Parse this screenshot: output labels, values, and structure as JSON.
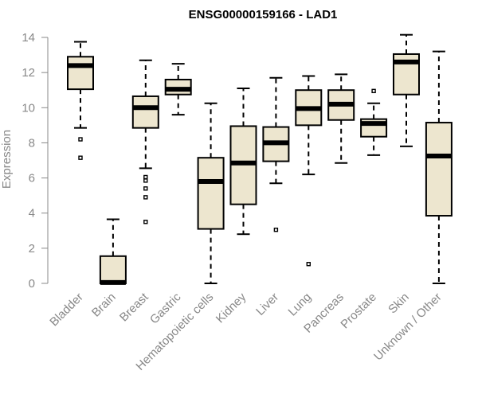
{
  "chart_data": {
    "type": "box",
    "title": "ENSG00000159166 - LAD1",
    "xlabel": "",
    "ylabel": "Expression",
    "ylim": [
      0,
      14
    ],
    "yticks": [
      0,
      2,
      4,
      6,
      8,
      10,
      12,
      14
    ],
    "grid": false,
    "box_fill": "#EDE6CF",
    "categories": [
      "Bladder",
      "Brain",
      "Breast",
      "Gastric",
      "Hematopoietic cells",
      "Kidney",
      "Liver",
      "Lung",
      "Pancreas",
      "Prostate",
      "Skin",
      "Unknown / Other"
    ],
    "boxes": [
      {
        "whisker_low": 8.85,
        "q1": 11.05,
        "median": 12.4,
        "q3": 12.9,
        "whisker_high": 13.75,
        "outliers": [
          8.2,
          7.15
        ]
      },
      {
        "whisker_low": 0.0,
        "q1": 0.0,
        "median": 0.05,
        "q3": 1.55,
        "whisker_high": 3.65,
        "outliers": []
      },
      {
        "whisker_low": 6.55,
        "q1": 8.85,
        "median": 10.0,
        "q3": 10.65,
        "whisker_high": 12.7,
        "outliers": [
          6.05,
          5.85,
          5.4,
          4.9,
          3.5
        ]
      },
      {
        "whisker_low": 9.6,
        "q1": 10.75,
        "median": 11.05,
        "q3": 11.6,
        "whisker_high": 12.5,
        "outliers": []
      },
      {
        "whisker_low": 0.0,
        "q1": 3.1,
        "median": 5.8,
        "q3": 7.15,
        "whisker_high": 10.25,
        "outliers": []
      },
      {
        "whisker_low": 2.8,
        "q1": 4.5,
        "median": 6.85,
        "q3": 8.95,
        "whisker_high": 11.1,
        "outliers": []
      },
      {
        "whisker_low": 5.7,
        "q1": 6.95,
        "median": 8.0,
        "q3": 8.9,
        "whisker_high": 11.7,
        "outliers": [
          3.05
        ]
      },
      {
        "whisker_low": 6.2,
        "q1": 9.0,
        "median": 9.95,
        "q3": 11.0,
        "whisker_high": 11.8,
        "outliers": [
          1.1
        ]
      },
      {
        "whisker_low": 6.85,
        "q1": 9.3,
        "median": 10.2,
        "q3": 11.0,
        "whisker_high": 11.9,
        "outliers": []
      },
      {
        "whisker_low": 7.3,
        "q1": 8.35,
        "median": 9.1,
        "q3": 9.35,
        "whisker_high": 10.25,
        "outliers": [
          10.95
        ]
      },
      {
        "whisker_low": 7.8,
        "q1": 10.75,
        "median": 12.6,
        "q3": 13.05,
        "whisker_high": 14.15,
        "outliers": []
      },
      {
        "whisker_low": 0.0,
        "q1": 3.85,
        "median": 7.25,
        "q3": 9.15,
        "whisker_high": 13.2,
        "outliers": []
      }
    ]
  }
}
